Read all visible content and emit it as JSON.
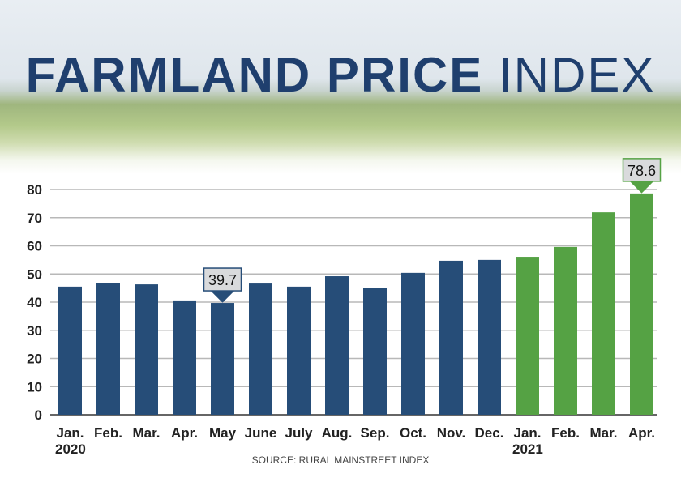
{
  "title_bold": "FARMLAND PRICE",
  "title_light": "INDEX",
  "source": "SOURCE: RURAL MAINSTREET INDEX",
  "colors": {
    "2020": "#264d78",
    "2021": "#55a244",
    "title": "#1f3f6e"
  },
  "chart_data": {
    "type": "bar",
    "categories": [
      "Jan.",
      "Feb.",
      "Mar.",
      "Apr.",
      "May",
      "June",
      "July",
      "Aug.",
      "Sep.",
      "Oct.",
      "Nov.",
      "Dec.",
      "Jan.",
      "Feb.",
      "Mar.",
      "Apr."
    ],
    "year_labels": [
      {
        "label": "2020",
        "index": 0
      },
      {
        "label": "2021",
        "index": 12
      }
    ],
    "values": [
      45.5,
      46.9,
      46.3,
      40.6,
      39.7,
      46.6,
      45.5,
      49.2,
      44.9,
      50.4,
      54.7,
      55.0,
      56.1,
      59.6,
      71.9,
      78.6
    ],
    "year_of": [
      "2020",
      "2020",
      "2020",
      "2020",
      "2020",
      "2020",
      "2020",
      "2020",
      "2020",
      "2020",
      "2020",
      "2020",
      "2021",
      "2021",
      "2021",
      "2021"
    ],
    "callouts": [
      {
        "index": 4,
        "label": "39.7"
      },
      {
        "index": 15,
        "label": "78.6"
      }
    ],
    "yticks": [
      0,
      10,
      20,
      30,
      40,
      50,
      60,
      70,
      80
    ],
    "ylim": [
      0,
      80
    ],
    "grid": true
  }
}
